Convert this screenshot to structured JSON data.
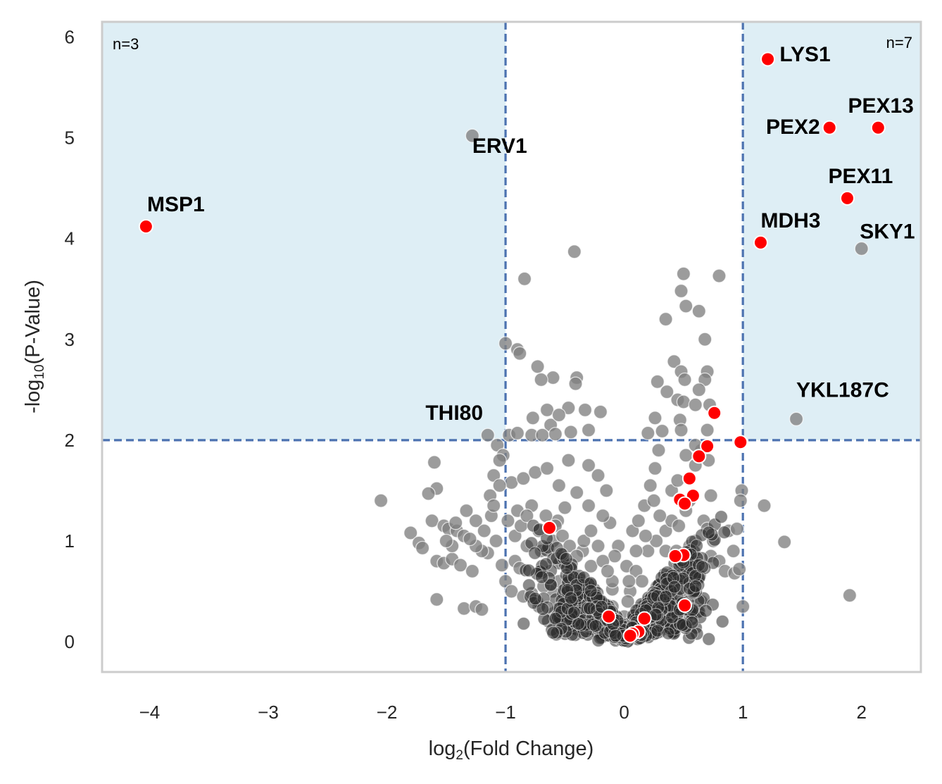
{
  "chart_data": {
    "type": "scatter",
    "title": "",
    "xlabel": {
      "pre": "log",
      "sub": "2",
      "post": "(Fold Change)"
    },
    "ylabel": {
      "pre": "-log",
      "sub": "10",
      "post": "(P-Value)"
    },
    "xlim": [
      -4.4,
      2.5
    ],
    "ylim": [
      -0.3,
      6.15
    ],
    "xticks": [
      -4,
      -3,
      -2,
      -1,
      0,
      1,
      2
    ],
    "xtick_labels": [
      "−4",
      "−3",
      "−2",
      "−1",
      "0",
      "1",
      "2"
    ],
    "yticks": [
      0,
      1,
      2,
      3,
      4,
      5,
      6
    ],
    "ytick_labels": [
      "0",
      "1",
      "2",
      "3",
      "4",
      "5",
      "6"
    ],
    "grid": false,
    "thresholds": {
      "fold_change": [
        -1,
        1
      ],
      "neg_log10_p": 2
    },
    "shading_color": "#deeef5",
    "threshold_color": "#4c72b0",
    "counts": {
      "left": "n=3",
      "right": "n=7"
    },
    "series": [
      {
        "color": "#808080",
        "points": [
          [
            -1.28,
            5.02
          ],
          [
            1.45,
            2.21
          ],
          [
            2.0,
            3.9
          ],
          [
            -1.15,
            2.05
          ],
          [
            -0.42,
            3.87
          ],
          [
            -0.84,
            3.6
          ],
          [
            0.8,
            3.63
          ],
          [
            0.5,
            3.65
          ],
          [
            0.48,
            3.48
          ],
          [
            0.52,
            3.33
          ],
          [
            0.35,
            3.2
          ],
          [
            0.63,
            3.28
          ],
          [
            0.68,
            3.0
          ],
          [
            -1.0,
            2.96
          ],
          [
            -0.9,
            2.9
          ],
          [
            -0.88,
            2.86
          ],
          [
            -0.73,
            2.73
          ],
          [
            -0.6,
            2.62
          ],
          [
            -0.4,
            2.62
          ],
          [
            -0.41,
            2.56
          ],
          [
            -0.7,
            2.6
          ],
          [
            0.42,
            2.78
          ],
          [
            0.48,
            2.68
          ],
          [
            0.51,
            2.6
          ],
          [
            0.7,
            2.68
          ],
          [
            0.68,
            2.6
          ],
          [
            0.28,
            2.58
          ],
          [
            0.36,
            2.48
          ],
          [
            0.45,
            2.4
          ],
          [
            0.5,
            2.38
          ],
          [
            0.6,
            2.35
          ],
          [
            -0.65,
            2.3
          ],
          [
            -0.47,
            2.32
          ],
          [
            -0.33,
            2.3
          ],
          [
            -0.2,
            2.28
          ],
          [
            -0.77,
            2.22
          ],
          [
            0.26,
            2.22
          ],
          [
            0.47,
            2.2
          ],
          [
            -0.62,
            2.15
          ],
          [
            -0.55,
            2.25
          ],
          [
            -0.97,
            2.05
          ],
          [
            -0.9,
            2.07
          ],
          [
            -0.78,
            2.05
          ],
          [
            -0.69,
            2.05
          ],
          [
            -0.58,
            2.06
          ],
          [
            -0.45,
            2.08
          ],
          [
            -0.3,
            2.1
          ],
          [
            0.2,
            2.07
          ],
          [
            0.32,
            2.09
          ],
          [
            0.48,
            2.1
          ],
          [
            -1.07,
            1.95
          ],
          [
            -1.02,
            1.85
          ],
          [
            -1.05,
            1.8
          ],
          [
            -1.6,
            1.78
          ],
          [
            -1.58,
            1.52
          ],
          [
            -1.65,
            1.47
          ],
          [
            -1.13,
            1.45
          ],
          [
            -2.05,
            1.4
          ],
          [
            -1.8,
            1.08
          ],
          [
            -1.62,
            1.2
          ],
          [
            -1.52,
            1.15
          ],
          [
            -1.48,
            1.12
          ],
          [
            -1.41,
            1.1
          ],
          [
            -1.35,
            1.05
          ],
          [
            -1.73,
            0.98
          ],
          [
            -1.7,
            0.93
          ],
          [
            -1.58,
            0.8
          ],
          [
            -1.52,
            0.78
          ],
          [
            -1.45,
            0.82
          ],
          [
            -1.38,
            0.76
          ],
          [
            -1.28,
            0.7
          ],
          [
            -1.58,
            0.42
          ],
          [
            -1.35,
            0.33
          ],
          [
            -1.25,
            0.35
          ],
          [
            -1.2,
            0.32
          ],
          [
            -1.0,
            0.6
          ],
          [
            -0.95,
            0.5
          ],
          [
            -0.85,
            0.45
          ],
          [
            -0.78,
            0.48
          ],
          [
            -1.03,
            0.76
          ],
          [
            -0.92,
            0.8
          ],
          [
            -0.88,
            0.73
          ],
          [
            -0.6,
            0.5
          ],
          [
            -0.55,
            0.6
          ],
          [
            -0.6,
            1.0
          ],
          [
            -0.56,
            1.2
          ],
          [
            -0.5,
            1.33
          ],
          [
            -0.47,
            1.8
          ],
          [
            -0.3,
            1.75
          ],
          [
            -0.22,
            1.65
          ],
          [
            -0.15,
            1.5
          ],
          [
            -0.12,
            1.18
          ],
          [
            -0.05,
            0.95
          ],
          [
            0.02,
            0.75
          ],
          [
            -0.1,
            0.52
          ],
          [
            -0.2,
            0.4
          ],
          [
            -0.32,
            0.25
          ],
          [
            -0.1,
            0.6
          ],
          [
            0.07,
            1.1
          ],
          [
            0.12,
            1.2
          ],
          [
            0.17,
            1.35
          ],
          [
            0.22,
            1.55
          ],
          [
            0.26,
            1.72
          ],
          [
            0.29,
            1.9
          ],
          [
            0.1,
            0.7
          ],
          [
            0.05,
            0.5
          ],
          [
            0.15,
            0.6
          ],
          [
            0.2,
            0.9
          ],
          [
            0.27,
            1.0
          ],
          [
            0.35,
            1.1
          ],
          [
            0.4,
            1.2
          ],
          [
            0.46,
            1.15
          ],
          [
            0.52,
            1.3
          ],
          [
            0.55,
            0.95
          ],
          [
            0.56,
            0.7
          ],
          [
            0.58,
            0.5
          ],
          [
            0.42,
            0.6
          ],
          [
            0.38,
            0.45
          ],
          [
            0.32,
            0.35
          ],
          [
            0.27,
            0.3
          ],
          [
            0.22,
            0.25
          ],
          [
            0.48,
            0.3
          ],
          [
            0.55,
            1.4
          ],
          [
            0.6,
            1.75
          ],
          [
            0.65,
            1.9
          ],
          [
            0.71,
            1.8
          ],
          [
            0.73,
            1.45
          ],
          [
            0.67,
            1.2
          ],
          [
            0.7,
            1.12
          ],
          [
            0.75,
            1.0
          ],
          [
            0.73,
            0.85
          ],
          [
            0.8,
            0.8
          ],
          [
            0.85,
            0.7
          ],
          [
            0.93,
            0.68
          ],
          [
            0.88,
            1.1
          ],
          [
            0.92,
            0.9
          ],
          [
            0.97,
            0.72
          ],
          [
            0.99,
            1.5
          ],
          [
            0.98,
            1.4
          ],
          [
            0.95,
            1.12
          ],
          [
            1.0,
            0.35
          ],
          [
            0.65,
            0.4
          ],
          [
            0.62,
            0.3
          ],
          [
            -0.02,
            0.1
          ],
          [
            0.0,
            0.02
          ],
          [
            -0.5,
            0.2
          ],
          [
            -0.4,
            0.12
          ],
          [
            -0.9,
            1.3
          ],
          [
            -0.78,
            1.35
          ],
          [
            -0.82,
            0.95
          ],
          [
            -0.7,
            0.9
          ],
          [
            -0.35,
            0.9
          ],
          [
            -0.28,
            0.75
          ],
          [
            -0.45,
            0.6
          ],
          [
            -0.38,
            0.45
          ],
          [
            -0.72,
            0.35
          ],
          [
            -0.6,
            0.28
          ],
          [
            -0.5,
            0.15
          ],
          [
            -0.68,
            0.55
          ],
          [
            -0.3,
            0.4
          ],
          [
            -0.25,
            0.15
          ],
          [
            -0.15,
            0.08
          ],
          [
            0.3,
            0.1
          ],
          [
            0.38,
            0.2
          ],
          [
            0.15,
            0.05
          ],
          [
            0.08,
            0.15
          ],
          [
            1.18,
            1.35
          ],
          [
            1.35,
            0.99
          ],
          [
            1.9,
            0.46
          ],
          [
            -0.95,
            1.58
          ],
          [
            -0.85,
            1.62
          ],
          [
            -0.75,
            1.68
          ],
          [
            -0.65,
            1.72
          ],
          [
            -0.55,
            1.55
          ],
          [
            -0.4,
            1.48
          ],
          [
            -0.3,
            1.35
          ],
          [
            -0.18,
            1.25
          ],
          [
            -0.08,
            0.85
          ],
          [
            0.03,
            0.4
          ],
          [
            0.0,
            0.25
          ],
          [
            0.04,
            0.6
          ],
          [
            0.1,
            0.9
          ],
          [
            0.18,
            1.05
          ],
          [
            0.25,
            1.4
          ],
          [
            0.3,
            1.25
          ],
          [
            0.35,
            0.9
          ],
          [
            0.44,
            0.9
          ],
          [
            0.5,
            0.8
          ],
          [
            0.6,
            1.0
          ],
          [
            0.62,
            0.62
          ],
          [
            0.5,
            0.5
          ],
          [
            0.45,
            0.4
          ],
          [
            0.4,
            1.5
          ],
          [
            0.45,
            1.6
          ],
          [
            0.52,
            1.85
          ],
          [
            0.6,
            1.95
          ],
          [
            0.7,
            2.1
          ],
          [
            0.72,
            2.35
          ],
          [
            0.63,
            2.5
          ],
          [
            -1.1,
            1.65
          ],
          [
            -1.05,
            1.55
          ],
          [
            -1.12,
            1.25
          ],
          [
            -1.08,
            1.0
          ],
          [
            -1.15,
            0.88
          ],
          [
            -1.2,
            0.9
          ],
          [
            -1.25,
            0.95
          ],
          [
            -1.3,
            1.02
          ],
          [
            -1.45,
            0.95
          ],
          [
            -1.5,
            1.0
          ],
          [
            -1.42,
            1.18
          ],
          [
            -1.33,
            1.3
          ],
          [
            -1.25,
            1.2
          ],
          [
            -1.18,
            1.1
          ],
          [
            -1.1,
            1.35
          ],
          [
            -0.98,
            1.2
          ],
          [
            -0.92,
            1.05
          ],
          [
            -0.87,
            1.15
          ],
          [
            -0.82,
            1.25
          ],
          [
            -0.72,
            1.1
          ],
          [
            -0.66,
            1.25
          ],
          [
            -0.58,
            1.15
          ],
          [
            -0.52,
            1.05
          ],
          [
            -0.46,
            0.95
          ],
          [
            -0.4,
            0.85
          ],
          [
            -0.34,
            1.0
          ],
          [
            -0.28,
            1.1
          ],
          [
            -0.22,
            0.95
          ],
          [
            -0.18,
            0.8
          ],
          [
            -0.14,
            0.7
          ],
          [
            -0.1,
            0.35
          ],
          [
            -0.06,
            0.2
          ]
        ]
      },
      {
        "color": "#ff0000",
        "points": [
          [
            -4.03,
            4.12
          ],
          [
            1.21,
            5.78
          ],
          [
            1.73,
            5.1
          ],
          [
            2.14,
            5.1
          ],
          [
            1.88,
            4.4
          ],
          [
            1.15,
            3.96
          ],
          [
            0.76,
            2.27
          ],
          [
            0.98,
            1.98
          ],
          [
            0.7,
            1.94
          ],
          [
            0.63,
            1.84
          ],
          [
            0.55,
            1.62
          ],
          [
            0.58,
            1.45
          ],
          [
            0.47,
            1.41
          ],
          [
            0.51,
            1.37
          ],
          [
            -0.63,
            1.13
          ],
          [
            0.5,
            0.86
          ],
          [
            0.43,
            0.85
          ],
          [
            0.51,
            0.36
          ],
          [
            -0.13,
            0.25
          ],
          [
            0.17,
            0.23
          ],
          [
            0.12,
            0.1
          ],
          [
            0.07,
            0.08
          ],
          [
            0.05,
            0.06
          ]
        ]
      }
    ],
    "labels": [
      {
        "text": "ERV1",
        "x": -1.28,
        "y": 5.02,
        "anchor": "start",
        "dx": 0,
        "dy": -0.17
      },
      {
        "text": "MSP1",
        "x": -4.03,
        "y": 4.12,
        "anchor": "start",
        "dx": 0.01,
        "dy": 0.15
      },
      {
        "text": "THI80",
        "x": -1.15,
        "y": 2.05,
        "anchor": "end",
        "dx": -0.04,
        "dy": 0.15
      },
      {
        "text": "LYS1",
        "x": 1.21,
        "y": 5.78,
        "anchor": "start",
        "dx": 0.1,
        "dy": -0.02
      },
      {
        "text": "PEX13",
        "x": 2.14,
        "y": 5.1,
        "anchor": "end",
        "dx": 0.3,
        "dy": 0.15
      },
      {
        "text": "PEX2",
        "x": 1.73,
        "y": 5.1,
        "anchor": "end",
        "dx": -0.08,
        "dy": -0.06
      },
      {
        "text": "PEX11",
        "x": 1.88,
        "y": 4.4,
        "anchor": "start",
        "dx": -0.16,
        "dy": 0.15
      },
      {
        "text": "MDH3",
        "x": 1.15,
        "y": 3.96,
        "anchor": "start",
        "dx": 0.0,
        "dy": 0.15
      },
      {
        "text": "SKY1",
        "x": 2.0,
        "y": 3.9,
        "anchor": "end",
        "dx": 0.45,
        "dy": 0.1
      },
      {
        "text": "YKL187C",
        "x": 1.45,
        "y": 2.21,
        "anchor": "start",
        "dx": 0.0,
        "dy": 0.22
      }
    ]
  }
}
